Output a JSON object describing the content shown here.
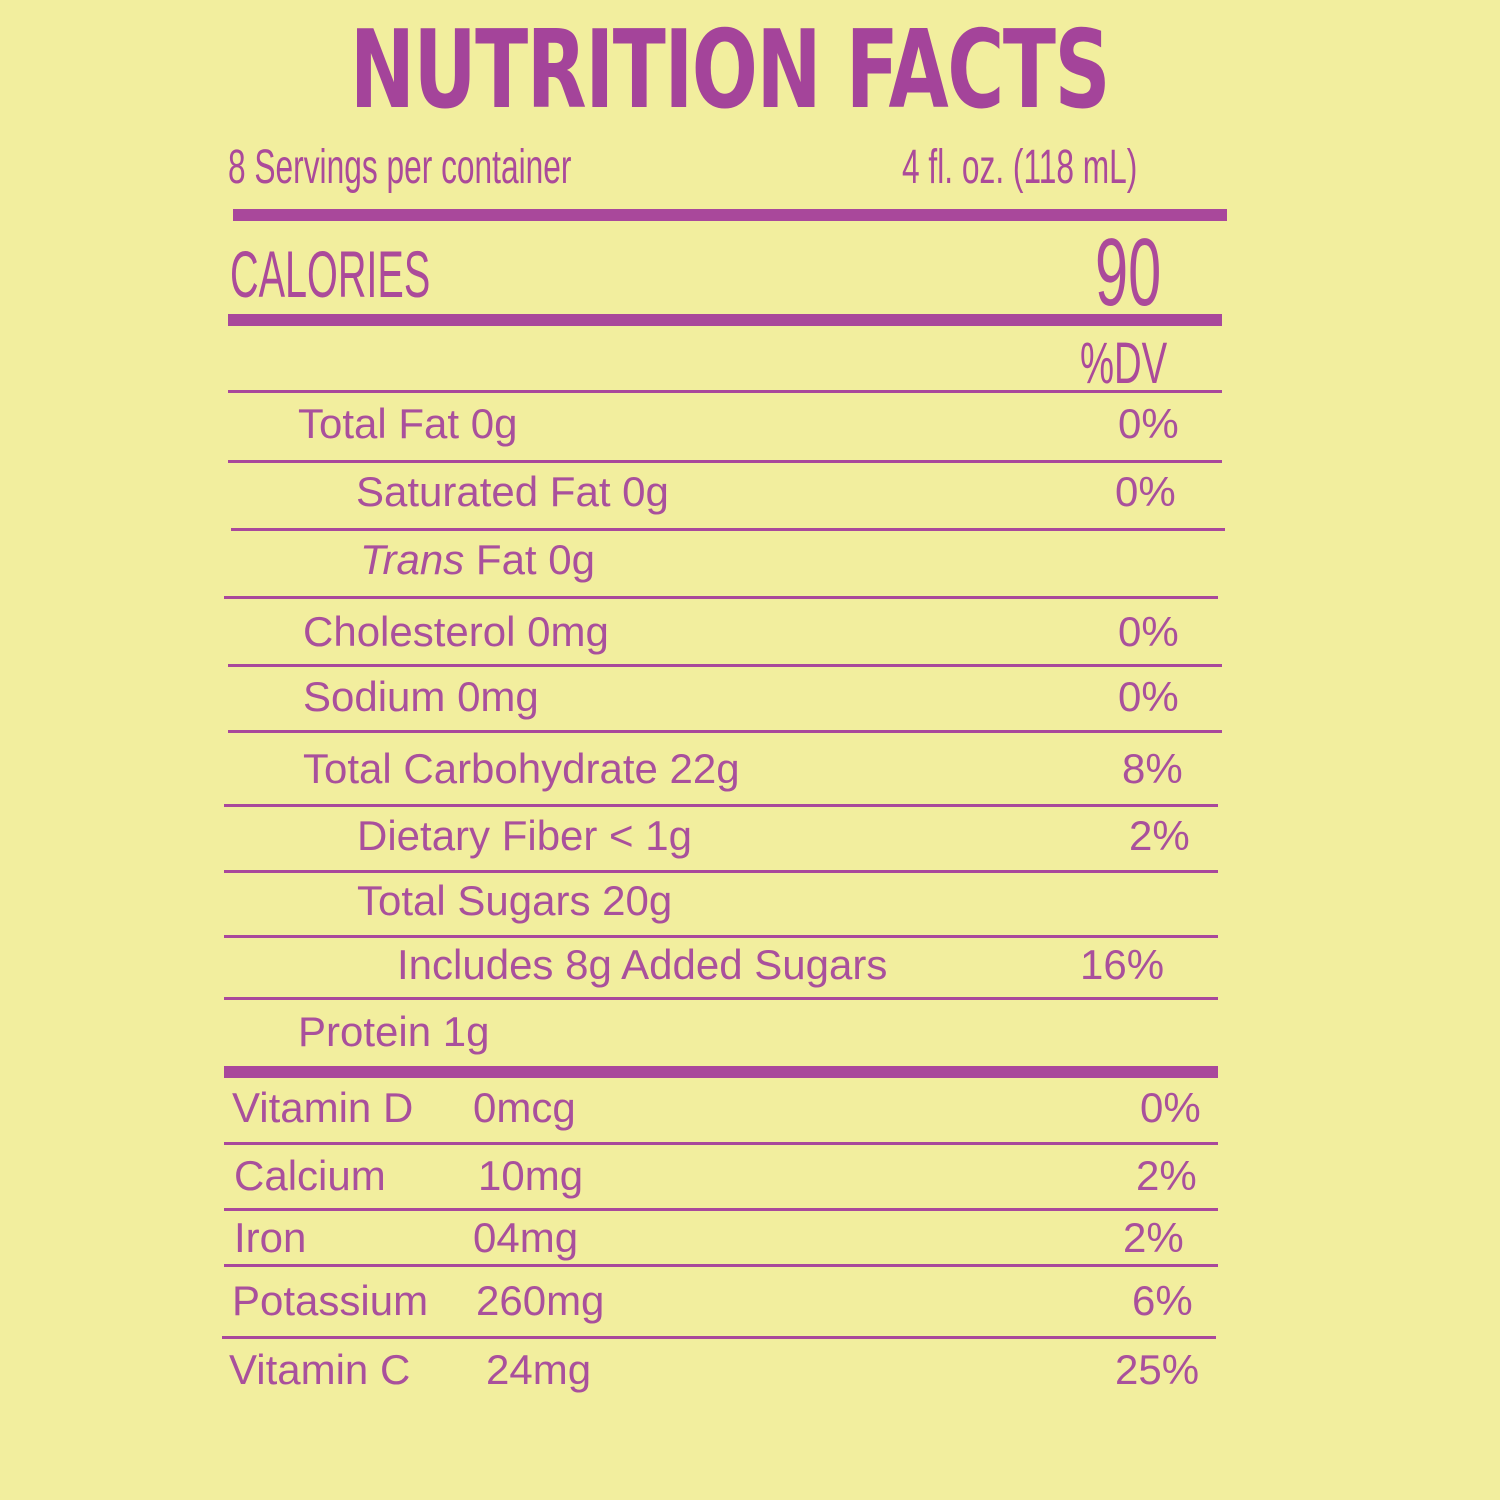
{
  "title": "NUTRITION FACTS",
  "servings_per_container": "8 Servings per container",
  "serving_size": "4 fl. oz. (118 mL)",
  "calories_label": "CALORIES",
  "calories_value": "90",
  "dv_header": "%DV",
  "nutrients": [
    {
      "label": "Total Fat 0g",
      "dv": "0%"
    },
    {
      "label": "Saturated Fat 0g",
      "dv": "0%"
    },
    {
      "label_italic": "Trans",
      "label_rest": " Fat 0g"
    },
    {
      "label": "Cholesterol 0mg",
      "dv": "0%"
    },
    {
      "label": "Sodium 0mg",
      "dv": "0%"
    },
    {
      "label": "Total Carbohydrate 22g",
      "dv": "8%"
    },
    {
      "label": "Dietary Fiber < 1g",
      "dv": "2%"
    },
    {
      "label": "Total Sugars  20g"
    },
    {
      "label": "Includes 8g Added Sugars",
      "dv": "16%"
    },
    {
      "label": "Protein 1g"
    }
  ],
  "vitamins": [
    {
      "name": "Vitamin D",
      "amount": "0mcg",
      "dv": "0%"
    },
    {
      "name": "Calcium",
      "amount": "10mg",
      "dv": "2%"
    },
    {
      "name": "Iron",
      "amount": "04mg",
      "dv": "2%"
    },
    {
      "name": "Potassium",
      "amount": "260mg",
      "dv": "6%"
    },
    {
      "name": "Vitamin C",
      "amount": "24mg",
      "dv": "25%"
    }
  ]
}
